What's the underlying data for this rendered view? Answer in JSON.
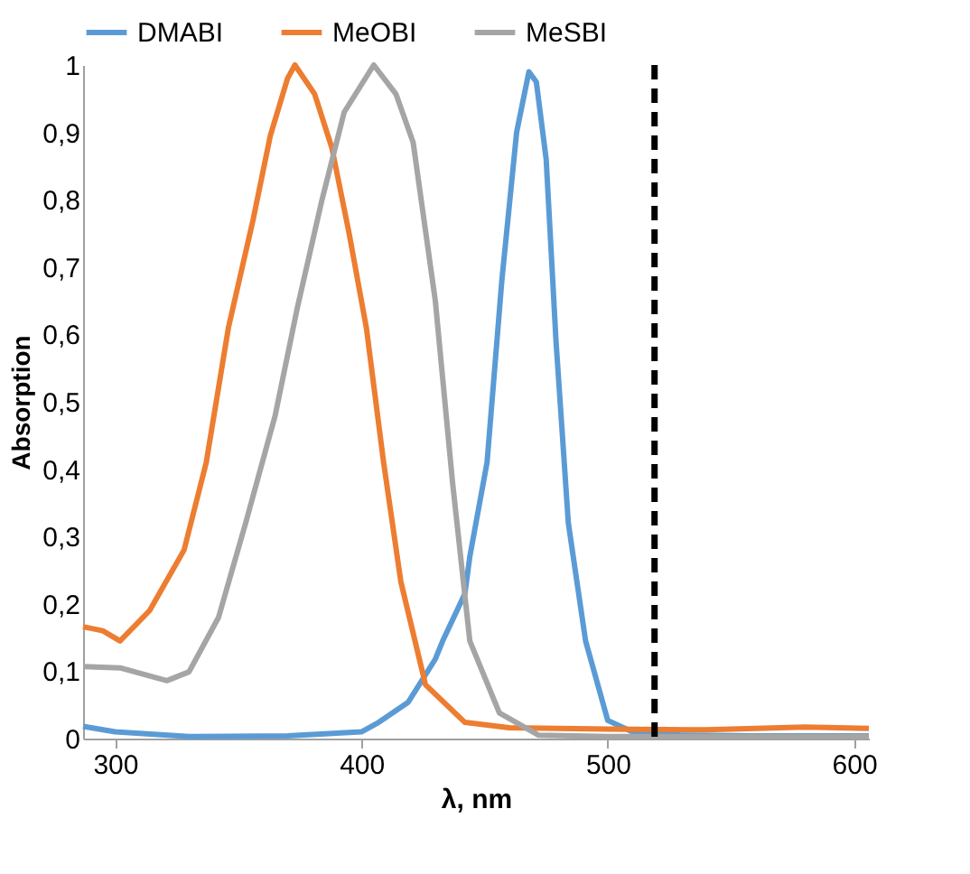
{
  "chart_data": {
    "type": "line",
    "xlabel": "λ, nm",
    "ylabel": "Absorption",
    "xlim": [
      287,
      606
    ],
    "xticks": [
      300,
      400,
      500,
      600
    ],
    "ylim": [
      0,
      1
    ],
    "yticks": [
      0,
      {
        "value": 0.1,
        "label": "0,1"
      },
      {
        "value": 0.2,
        "label": "0,2"
      },
      {
        "value": 0.3,
        "label": "0,3"
      },
      {
        "value": 0.4,
        "label": "0,4"
      },
      {
        "value": 0.5,
        "label": "0,5"
      },
      {
        "value": 0.6,
        "label": "0,6"
      },
      {
        "value": 0.7,
        "label": "0,7"
      },
      {
        "value": 0.8,
        "label": "0,8"
      },
      {
        "value": 0.9,
        "label": "0,9"
      },
      1
    ],
    "grid": false,
    "legend": "top",
    "marker": "none",
    "line_style": "solid",
    "ref_lines": [
      {
        "axis": "x",
        "value": 519,
        "color": "#000000",
        "line_style": "dashed"
      }
    ],
    "series": [
      {
        "name": "DMABI",
        "color": "#5b9bd5",
        "x": [
          287,
          300,
          330,
          370,
          400,
          407,
          419,
          430,
          433,
          442,
          444,
          451,
          457,
          463,
          468,
          471,
          475,
          479,
          484,
          491,
          500,
          510,
          530,
          560,
          606
        ],
        "values": [
          0.018,
          0.01,
          0.003,
          0.004,
          0.01,
          0.024,
          0.054,
          0.118,
          0.145,
          0.215,
          0.27,
          0.41,
          0.68,
          0.9,
          0.99,
          0.975,
          0.86,
          0.59,
          0.32,
          0.145,
          0.027,
          0.01,
          0.005,
          0.004,
          0.004
        ]
      },
      {
        "name": "MeOBI",
        "color": "#ed7d31",
        "x": [
          287,
          295,
          302,
          314,
          328,
          337,
          346,
          356,
          363,
          370,
          373,
          381,
          388,
          395,
          402,
          409,
          416,
          426,
          442,
          460,
          500,
          540,
          580,
          606
        ],
        "values": [
          0.166,
          0.16,
          0.145,
          0.19,
          0.28,
          0.41,
          0.61,
          0.77,
          0.895,
          0.98,
          1.0,
          0.957,
          0.877,
          0.75,
          0.61,
          0.41,
          0.233,
          0.08,
          0.024,
          0.016,
          0.014,
          0.013,
          0.017,
          0.015
        ]
      },
      {
        "name": "MeSBI",
        "color": "#a5a5a5",
        "x": [
          287,
          302,
          321,
          330,
          342,
          353,
          365,
          374,
          384,
          393,
          405,
          414,
          421,
          430,
          437,
          444,
          456,
          472,
          500,
          550,
          606
        ],
        "values": [
          0.107,
          0.105,
          0.086,
          0.099,
          0.18,
          0.32,
          0.48,
          0.64,
          0.8,
          0.93,
          1.0,
          0.957,
          0.885,
          0.65,
          0.38,
          0.145,
          0.038,
          0.005,
          0.003,
          0.003,
          0.003
        ]
      }
    ]
  }
}
